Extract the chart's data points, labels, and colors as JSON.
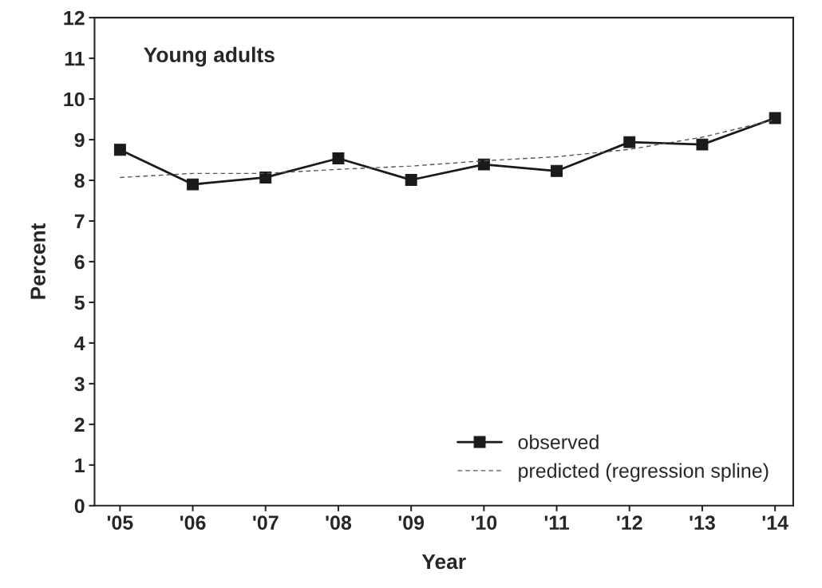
{
  "chart_data": {
    "type": "line",
    "xlabel": "Year",
    "ylabel": "Percent",
    "annotations": [
      "Young adults"
    ],
    "categories": [
      "'05",
      "'06",
      "'07",
      "'08",
      "'09",
      "'10",
      "'11",
      "'12",
      "'13",
      "'14"
    ],
    "series": [
      {
        "name": "observed",
        "color": "#1a1a1a",
        "marker": "square",
        "line_style": "solid",
        "values": [
          8.75,
          7.9,
          8.07,
          8.54,
          8.01,
          8.39,
          8.23,
          8.94,
          8.88,
          9.53
        ]
      },
      {
        "name": "predicted (regression spline)",
        "color": "#555555",
        "marker": "none",
        "line_style": "dashed",
        "values": [
          8.07,
          8.17,
          8.17,
          8.27,
          8.35,
          8.48,
          8.58,
          8.76,
          9.06,
          9.49
        ]
      }
    ],
    "ylim": [
      0,
      12
    ],
    "yticks": [
      0,
      1,
      2,
      3,
      4,
      5,
      6,
      7,
      8,
      9,
      10,
      11,
      12
    ],
    "grid": false,
    "legend": "bottom right"
  }
}
